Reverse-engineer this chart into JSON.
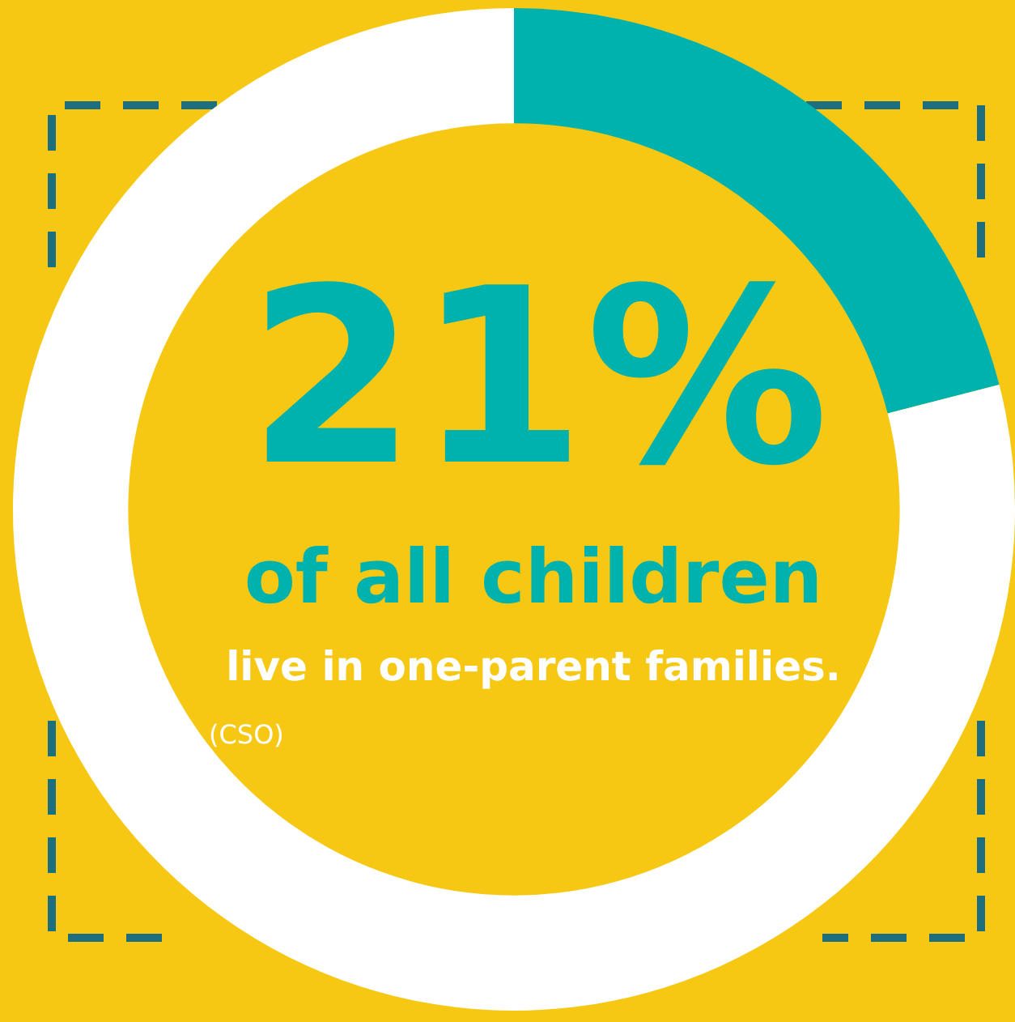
{
  "chart_data": {
    "type": "donut",
    "categories": [
      null,
      null
    ],
    "values": [
      21,
      79
    ],
    "colors": [
      "#00b2ae",
      "#ffffff"
    ],
    "value_labels": [
      "21%",
      null
    ],
    "annotations": [
      "of all children",
      "live in one-parent families.",
      "(CSO)"
    ],
    "legend": false
  }
}
